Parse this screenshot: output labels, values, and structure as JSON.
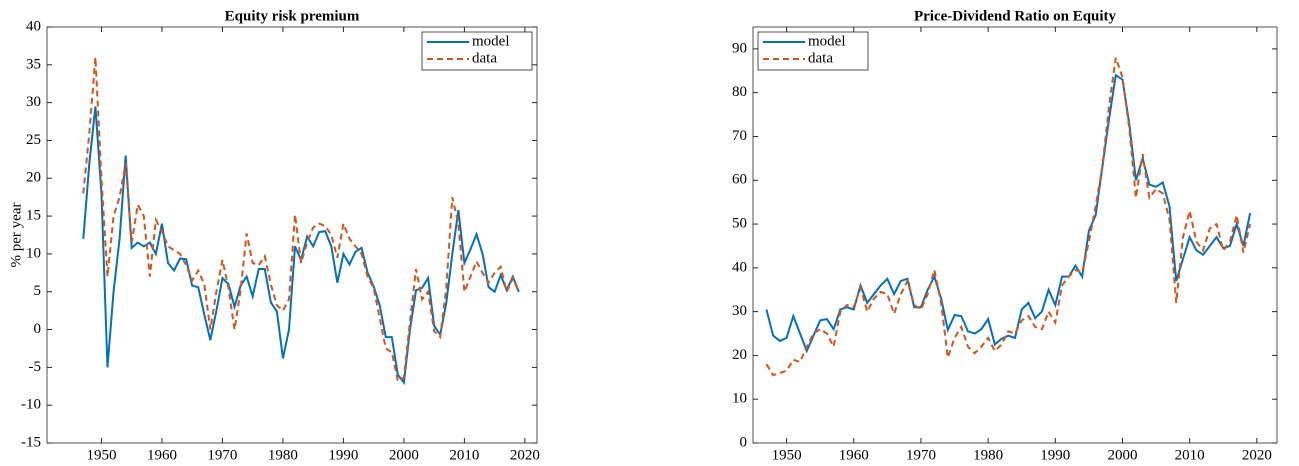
{
  "chart_data": [
    {
      "type": "line",
      "title": "Equity risk premium",
      "y_label": "% per year",
      "legend": "upper right",
      "x": [
        1947,
        1948,
        1949,
        1950,
        1951,
        1952,
        1953,
        1954,
        1955,
        1956,
        1957,
        1958,
        1959,
        1960,
        1961,
        1962,
        1963,
        1964,
        1965,
        1966,
        1967,
        1968,
        1969,
        1970,
        1971,
        1972,
        1973,
        1974,
        1975,
        1976,
        1977,
        1978,
        1979,
        1980,
        1981,
        1982,
        1983,
        1984,
        1985,
        1986,
        1987,
        1988,
        1989,
        1990,
        1991,
        1992,
        1993,
        1994,
        1995,
        1996,
        1997,
        1998,
        1999,
        2000,
        2001,
        2002,
        2003,
        2004,
        2005,
        2006,
        2007,
        2008,
        2009,
        2010,
        2011,
        2012,
        2013,
        2014,
        2015,
        2016,
        2017,
        2018,
        2019
      ],
      "series": [
        {
          "name": "model",
          "color": "#0072bd",
          "dash": false,
          "values": [
            12,
            22,
            29.5,
            18,
            -5,
            5,
            12,
            23,
            10.8,
            11.5,
            11,
            11.5,
            10,
            14,
            8.8,
            7.8,
            9.4,
            9.3,
            5.8,
            5.6,
            2,
            -1.4,
            2.5,
            6.8,
            6,
            3,
            5.8,
            7,
            4.4,
            8,
            8,
            3.6,
            2.4,
            -3.8,
            0,
            11,
            9.2,
            12.3,
            11,
            12.9,
            13,
            11,
            6.2,
            10,
            8.6,
            10.3,
            10.8,
            7.5,
            5.7,
            3.2,
            -1,
            -1,
            -6,
            -7,
            0,
            5.2,
            5.5,
            6.8,
            0.5,
            -0.7,
            3.5,
            10,
            15.8,
            8.8,
            10.6,
            12.6,
            10,
            5.6,
            5,
            7.2,
            5.2,
            7,
            5
          ]
        },
        {
          "name": "data",
          "color": "#d95319",
          "dash": true,
          "values": [
            18,
            26,
            36,
            20,
            7,
            15,
            17.5,
            22,
            11.5,
            16.5,
            15,
            7,
            14.5,
            13,
            11,
            10.5,
            10,
            8.5,
            6.5,
            7.8,
            6,
            0,
            5,
            9.2,
            5.5,
            0,
            5.2,
            12.7,
            8.8,
            8.5,
            9.7,
            6,
            3.2,
            2.5,
            4,
            15.2,
            8.8,
            11.5,
            13.5,
            14,
            13.7,
            12.5,
            9.5,
            14,
            12,
            11,
            10,
            7,
            5.5,
            1.5,
            -2.5,
            -3,
            -6.8,
            -6.3,
            1,
            8,
            4,
            5,
            -0.2,
            -1,
            5.5,
            17.5,
            14,
            5,
            7,
            9,
            7.5,
            6.2,
            7.5,
            8.3,
            5,
            6.8,
            5
          ]
        }
      ],
      "xlim": [
        1941,
        2022
      ],
      "xticks": [
        1950,
        1960,
        1970,
        1980,
        1990,
        2000,
        2010,
        2020
      ],
      "ylim": [
        -15,
        40
      ],
      "yticks": [
        -15,
        -10,
        -5,
        0,
        5,
        10,
        15,
        20,
        25,
        30,
        35,
        40
      ]
    },
    {
      "type": "line",
      "title": "Price-Dividend Ratio on Equity",
      "legend": "upper left",
      "x": [
        1947,
        1948,
        1949,
        1950,
        1951,
        1952,
        1953,
        1954,
        1955,
        1956,
        1957,
        1958,
        1959,
        1960,
        1961,
        1962,
        1963,
        1964,
        1965,
        1966,
        1967,
        1968,
        1969,
        1970,
        1971,
        1972,
        1973,
        1974,
        1975,
        1976,
        1977,
        1978,
        1979,
        1980,
        1981,
        1982,
        1983,
        1984,
        1985,
        1986,
        1987,
        1988,
        1989,
        1990,
        1991,
        1992,
        1993,
        1994,
        1995,
        1996,
        1997,
        1998,
        1999,
        2000,
        2001,
        2002,
        2003,
        2004,
        2005,
        2006,
        2007,
        2008,
        2009,
        2010,
        2011,
        2012,
        2013,
        2014,
        2015,
        2016,
        2017,
        2018,
        2019
      ],
      "series": [
        {
          "name": "model",
          "color": "#0072bd",
          "dash": false,
          "values": [
            30.5,
            24.5,
            23.3,
            24,
            29,
            25,
            21,
            24.5,
            28,
            28.3,
            26,
            30.5,
            31,
            30.5,
            36,
            32,
            34,
            36,
            37.5,
            34,
            37,
            37.5,
            31,
            31,
            35,
            38,
            33,
            25.8,
            29.2,
            29,
            25.5,
            25,
            26,
            28.3,
            22.5,
            23.8,
            24.5,
            24,
            30.5,
            32,
            28.5,
            30,
            35,
            31.5,
            38,
            38,
            40.5,
            38,
            48.5,
            52,
            63,
            74,
            84,
            83,
            73,
            60,
            65,
            59,
            58.5,
            59.5,
            54,
            37,
            42,
            47,
            44,
            43,
            45,
            47,
            44.5,
            45,
            50,
            45,
            52.5
          ]
        },
        {
          "name": "data",
          "color": "#d95319",
          "dash": true,
          "values": [
            18,
            15.5,
            16,
            16.5,
            19,
            18.5,
            22,
            25,
            26,
            25,
            22,
            30,
            31.5,
            31,
            35.5,
            30,
            33,
            34.5,
            34,
            29.5,
            34,
            37,
            31.5,
            30.5,
            34,
            39.5,
            32,
            19.5,
            24,
            26.5,
            22,
            20.5,
            22,
            24,
            21,
            22.5,
            25.5,
            25,
            28,
            29,
            26.5,
            26,
            30,
            27.5,
            36,
            38,
            39.5,
            39,
            46,
            54,
            63,
            77,
            88,
            83.5,
            72,
            56,
            66,
            56,
            58,
            57,
            51,
            32,
            47,
            53,
            46,
            44,
            49,
            50,
            44,
            46,
            52,
            43.5,
            50
          ]
        }
      ],
      "xlim": [
        1945,
        2023
      ],
      "xticks": [
        1950,
        1960,
        1970,
        1980,
        1990,
        2000,
        2010,
        2020
      ],
      "ylim": [
        0,
        95
      ],
      "yticks": [
        0,
        10,
        20,
        30,
        40,
        50,
        60,
        70,
        80,
        90
      ]
    }
  ]
}
